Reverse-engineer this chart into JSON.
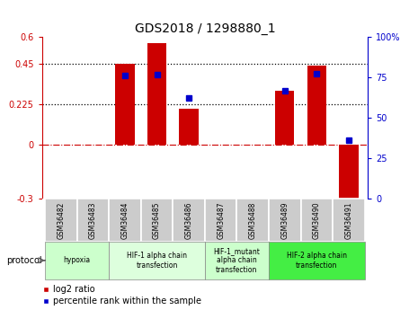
{
  "title": "GDS2018 / 1298880_1",
  "samples": [
    "GSM36482",
    "GSM36483",
    "GSM36484",
    "GSM36485",
    "GSM36486",
    "GSM36487",
    "GSM36488",
    "GSM36489",
    "GSM36490",
    "GSM36491"
  ],
  "log2_ratio": [
    0.0,
    0.0,
    0.45,
    0.565,
    0.2,
    0.0,
    0.0,
    0.3,
    0.44,
    -0.38
  ],
  "percentile_rank": [
    null,
    null,
    0.76,
    0.77,
    0.625,
    null,
    null,
    0.665,
    0.775,
    0.36
  ],
  "ylim": [
    -0.3,
    0.6
  ],
  "y2lim": [
    0.0,
    1.0
  ],
  "yticks": [
    -0.3,
    0.0,
    0.225,
    0.45,
    0.6
  ],
  "yticklabels": [
    "-0.3",
    "0",
    "0.225",
    "0.45",
    "0.6"
  ],
  "y2ticks": [
    0.0,
    0.25,
    0.5,
    0.75,
    1.0
  ],
  "y2ticklabels": [
    "0",
    "25",
    "50",
    "75",
    "100%"
  ],
  "hlines_dotted": [
    0.225,
    0.45
  ],
  "hline_dashed": 0.0,
  "bar_color": "#cc0000",
  "dot_color": "#0000cc",
  "protocols": [
    {
      "label": "hypoxia",
      "start": 0,
      "end": 2,
      "color": "#ccffcc"
    },
    {
      "label": "HIF-1 alpha chain\ntransfection",
      "start": 2,
      "end": 5,
      "color": "#ddffdd"
    },
    {
      "label": "HIF-1_mutant\nalpha chain\ntransfection",
      "start": 5,
      "end": 7,
      "color": "#ccffcc"
    },
    {
      "label": "HIF-2 alpha chain\ntransfection",
      "start": 7,
      "end": 10,
      "color": "#44ee44"
    }
  ],
  "protocol_label": "protocol",
  "legend_log2": "log2 ratio",
  "legend_pct": "percentile rank within the sample",
  "tick_bg_color": "#cccccc",
  "bar_width": 0.6
}
